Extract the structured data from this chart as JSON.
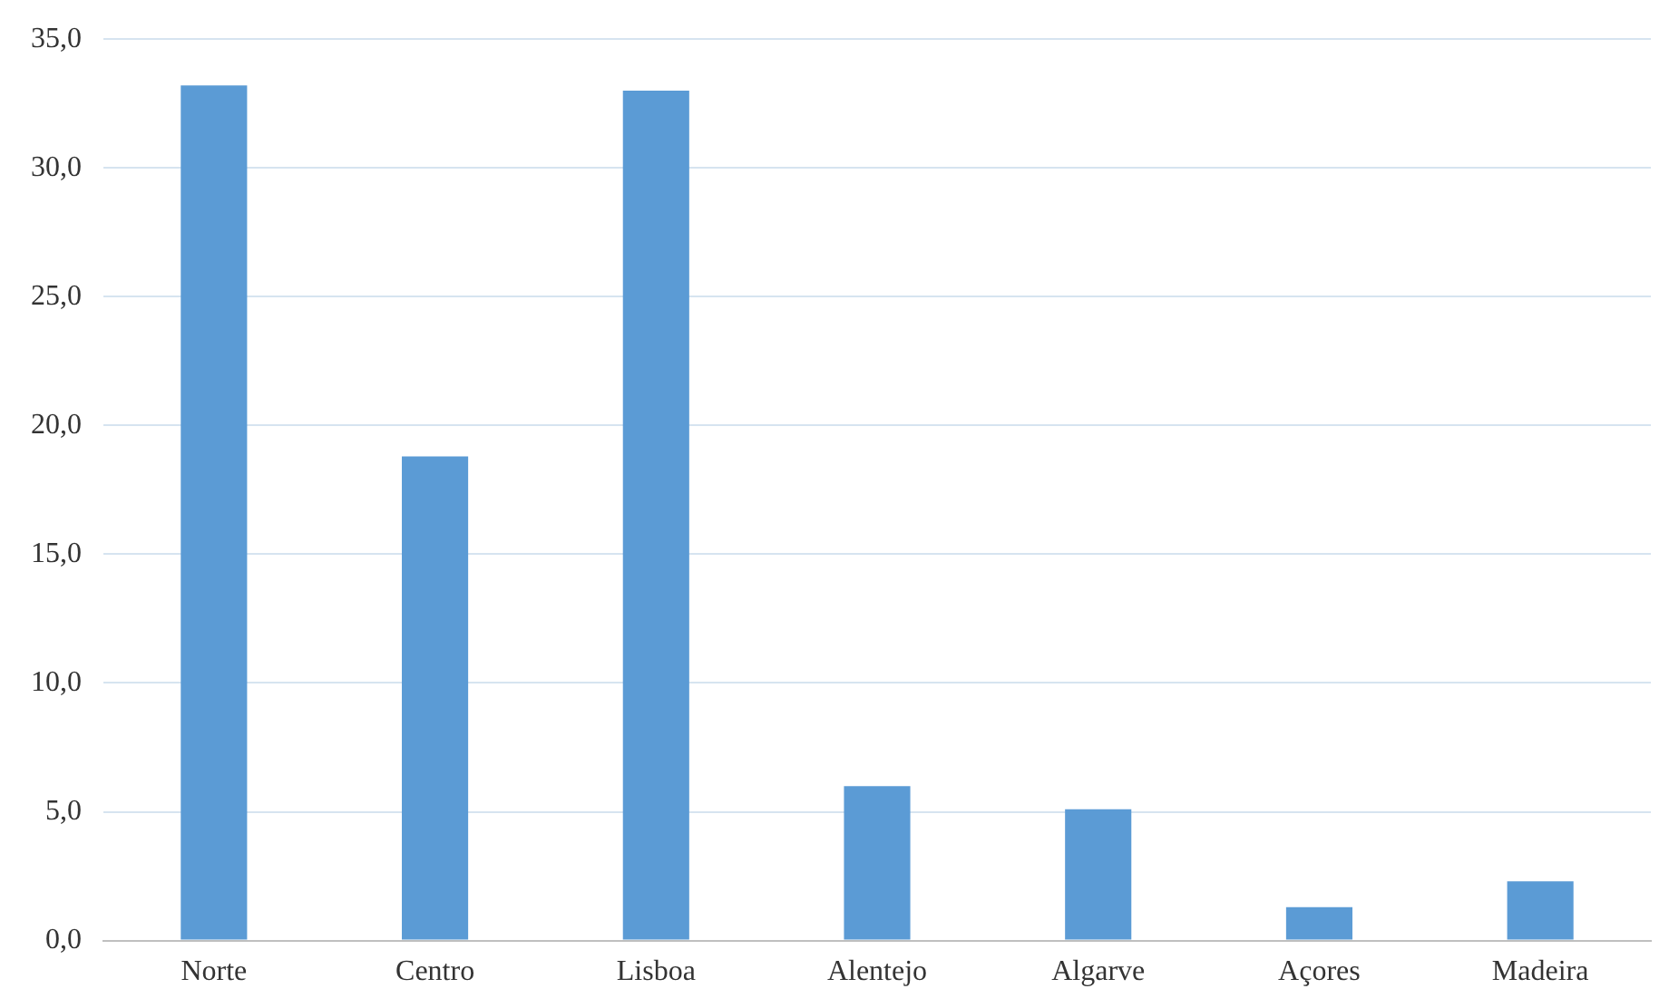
{
  "chart_data": {
    "type": "bar",
    "categories": [
      "Norte",
      "Centro",
      "Lisboa",
      "Alentejo",
      "Algarve",
      "Açores",
      "Madeira"
    ],
    "values": [
      33.2,
      18.8,
      33.0,
      6.0,
      5.1,
      1.3,
      2.3
    ],
    "color": "#5b9bd5",
    "ylim": [
      0,
      35
    ],
    "yticks": [
      {
        "value": 0,
        "label": "0,0"
      },
      {
        "value": 5,
        "label": "5,0"
      },
      {
        "value": 10,
        "label": "10,0"
      },
      {
        "value": 15,
        "label": "15,0"
      },
      {
        "value": 20,
        "label": "20,0"
      },
      {
        "value": 25,
        "label": "25,0"
      },
      {
        "value": 30,
        "label": "30,0"
      },
      {
        "value": 35,
        "label": "35,0"
      }
    ],
    "grid": "y",
    "legend": false
  }
}
